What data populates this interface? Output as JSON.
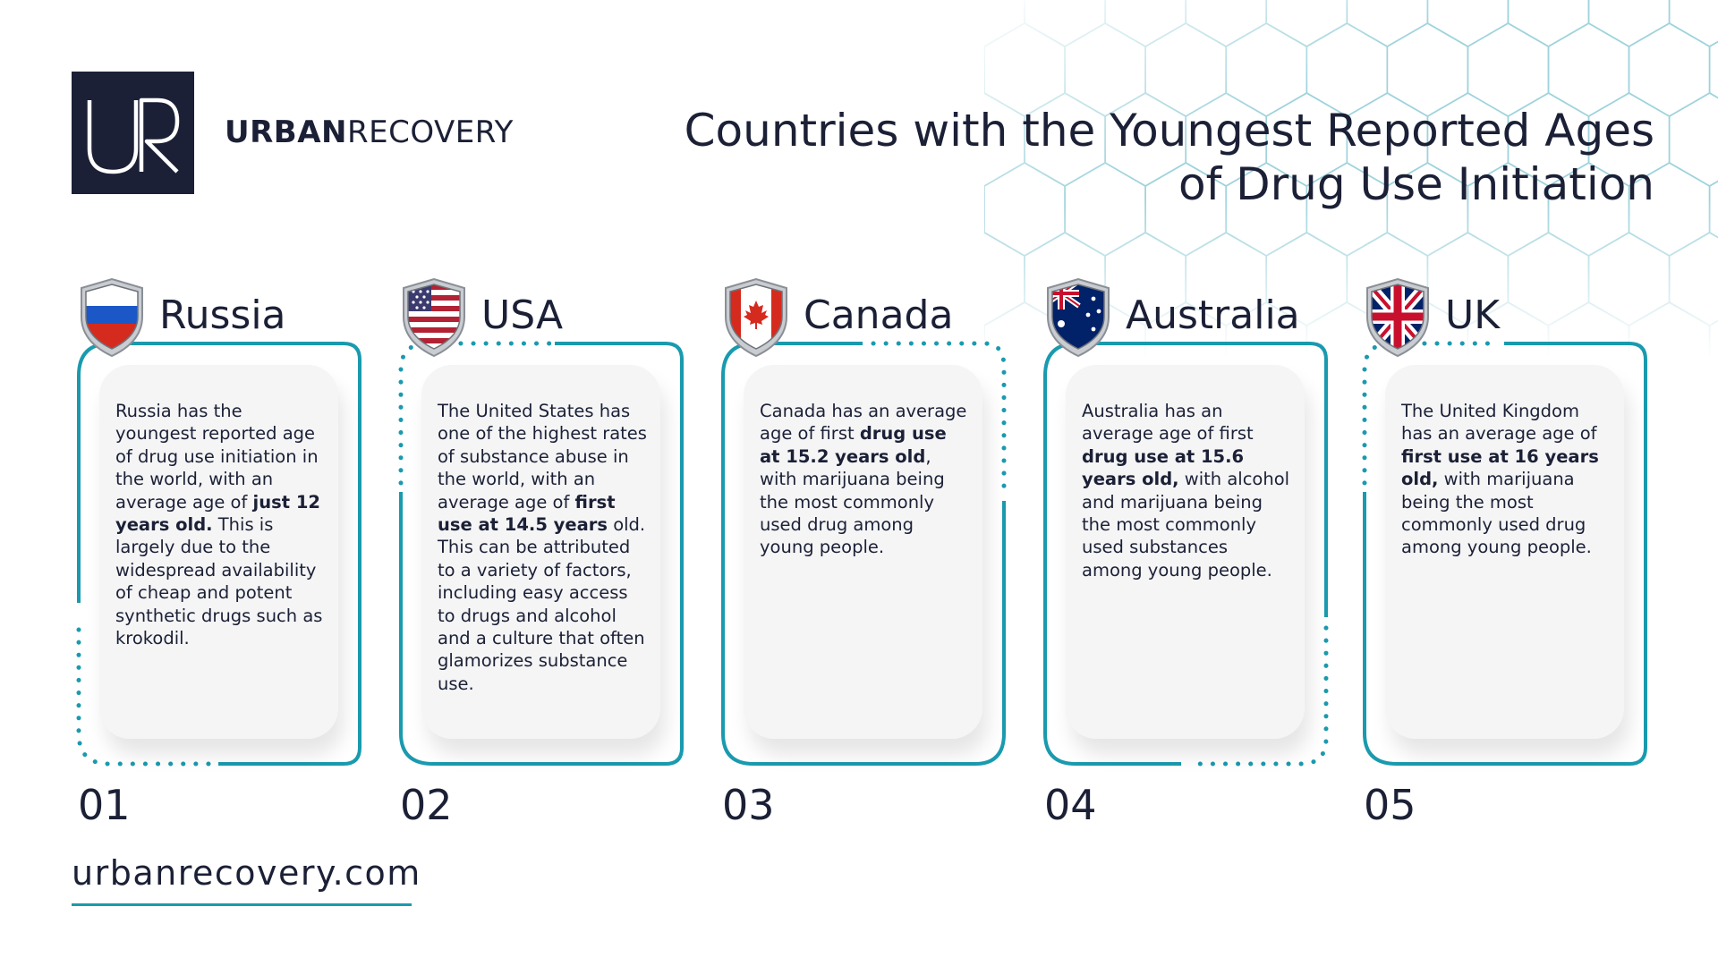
{
  "brand": {
    "logo_letters": "UR",
    "name_bold": "URBAN",
    "name_light": "RECOVERY"
  },
  "title": {
    "line1": "Countries with the Youngest Reported Ages",
    "line2": "of Drug Use Initiation"
  },
  "colors": {
    "accent": "#1a9aae",
    "navy": "#1b2036",
    "panel": "#f5f5f6"
  },
  "cards": [
    {
      "country": "Russia",
      "number": "01",
      "flag_icon": "russia-flag-shield-icon",
      "text_before": "Russia has the youngest reported age of drug use initiation in the world, with an average age of ",
      "text_bold": "just 12 years old.",
      "text_after": " This is largely due to the widespread availability of cheap and potent synthetic drugs such as krokodil."
    },
    {
      "country": "USA",
      "number": "02",
      "flag_icon": "usa-flag-shield-icon",
      "text_before": "The United States has one of the highest rates of substance abuse in the world, with an average age of ",
      "text_bold": "first use at 14.5 years",
      "text_after": " old. This can be attributed to a variety of factors, including easy access to drugs and alcohol and a culture that often glamorizes substance use."
    },
    {
      "country": "Canada",
      "number": "03",
      "flag_icon": "canada-flag-shield-icon",
      "text_before": "Canada has an average age of first ",
      "text_bold": "drug use at 15.2 years old",
      "text_after": ", with marijuana being the most commonly used drug among young people."
    },
    {
      "country": "Australia",
      "number": "04",
      "flag_icon": "australia-flag-shield-icon",
      "text_before": "Australia has an average age of first ",
      "text_bold": "drug use at 15.6 years old,",
      "text_after": " with alcohol and marijuana being the most commonly used substances among young people."
    },
    {
      "country": "UK",
      "number": "05",
      "flag_icon": "uk-flag-shield-icon",
      "text_before": "The United Kingdom has an average age of ",
      "text_bold": "first use at 16 years old,",
      "text_after": " with marijuana being the most commonly used drug among young people."
    }
  ],
  "footer": {
    "url": "urbanrecovery.com"
  }
}
